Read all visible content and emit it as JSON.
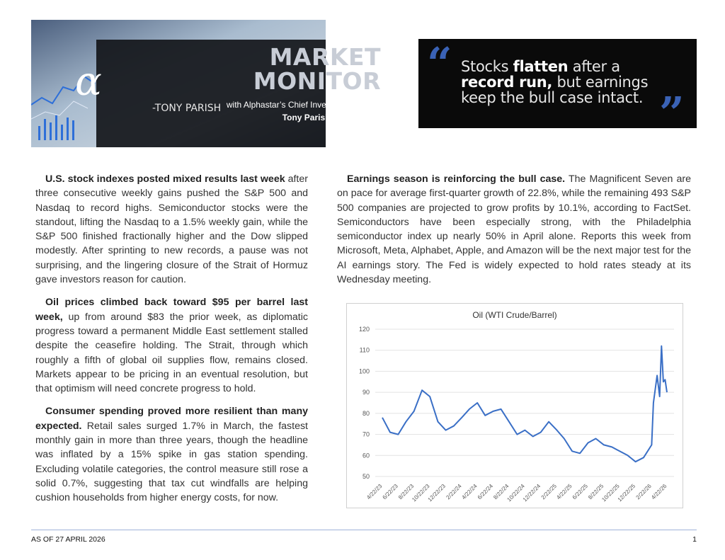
{
  "header": {
    "logo_glyph": "α",
    "title_line1": "MARKET",
    "title_line2": "MONITOR",
    "subtitle": "with Alphastar’s Chief Investment Officer,",
    "author": "Tony Parish, CFA®, CQF"
  },
  "quote": {
    "open_mark": "“",
    "close_mark": "”",
    "text_1": "Stocks ",
    "text_bold_1": "flatten",
    "text_2": " after a ",
    "text_bold_2": "record run,",
    "text_3": " but earnings keep the bull case intact.",
    "author": "-TONY PARISH"
  },
  "left_column": [
    {
      "lead": "U.S. stock indexes posted mixed results last week",
      "body": " after three consecutive weekly gains pushed the S&P 500 and Nasdaq to record highs. Semiconductor stocks were the standout, lifting the Nasdaq to a 1.5% weekly gain, while the S&P 500 finished fractionally higher and the Dow slipped modestly. After sprinting to new records, a pause was not surprising, and the lingering closure of the Strait of Hormuz gave investors reason for caution."
    },
    {
      "lead": "Oil prices climbed back toward $95 per barrel last week,",
      "body": " up from around $83 the prior week, as diplomatic progress toward a permanent Middle East settlement stalled despite the ceasefire holding. The Strait, through which roughly a fifth of global oil supplies flow, remains closed. Markets appear to be pricing in an eventual resolution, but that optimism will need concrete progress to hold."
    },
    {
      "lead": "Consumer spending proved more resilient than many expected.",
      "body": " Retail sales surged 1.7% in March, the fastest monthly gain in more than three years, though the headline was inflated by a 15% spike in gas station spending. Excluding volatile categories, the control measure still rose a solid 0.7%, suggesting that tax cut windfalls are helping cushion households from higher energy costs, for now."
    }
  ],
  "right_column": [
    {
      "lead": "Earnings season is reinforcing the bull case.",
      "body": " The Magnificent Seven are on pace for average first-quarter growth of 22.8%, while the remaining 493 S&P 500 companies are projected to grow profits by 10.1%, according to FactSet. Semiconductors have been especially strong, with the Philadelphia semiconductor index up nearly 50% in April alone. Reports this week from Microsoft, Meta, Alphabet, Apple, and Amazon will be the next major test for the AI earnings story. The Fed is widely expected to hold rates steady at its Wednesday meeting."
    }
  ],
  "chart_data": {
    "type": "line",
    "title": "Oil (WTI Crude/Barrel)",
    "xlabel": "",
    "ylabel": "",
    "ylim": [
      50,
      120
    ],
    "yticks": [
      50,
      60,
      70,
      80,
      90,
      100,
      110,
      120
    ],
    "xticks": [
      "4/22/23",
      "6/22/23",
      "8/22/23",
      "10/22/23",
      "12/22/23",
      "2/22/24",
      "4/22/24",
      "6/22/24",
      "8/22/24",
      "10/22/24",
      "12/22/24",
      "2/22/25",
      "4/22/25",
      "6/22/25",
      "8/22/25",
      "10/22/25",
      "12/22/25",
      "2/22/26",
      "4/22/26"
    ],
    "grid": true,
    "legend": "none",
    "color": "#3a6fc6",
    "series": [
      {
        "x": [
          "4/22/23",
          "5/22/23",
          "6/22/23",
          "7/22/23",
          "8/22/23",
          "9/22/23",
          "10/22/23",
          "11/22/23",
          "12/22/23",
          "1/22/24",
          "2/22/24",
          "3/22/24",
          "4/22/24",
          "5/22/24",
          "6/22/24",
          "7/22/24",
          "8/22/24",
          "9/22/24",
          "10/22/24",
          "11/22/24",
          "12/22/24",
          "1/22/25",
          "2/22/25",
          "3/22/25",
          "4/22/25",
          "5/22/25",
          "6/22/25",
          "7/22/25",
          "8/22/25",
          "9/22/25",
          "10/22/25",
          "11/22/25",
          "12/22/25",
          "1/22/26",
          "2/22/26",
          "3/1/26",
          "3/15/26",
          "3/25/26",
          "4/1/26",
          "4/8/26",
          "4/15/26",
          "4/22/26"
        ],
        "values": [
          78,
          71,
          70,
          76,
          81,
          91,
          88,
          76,
          72,
          74,
          78,
          82,
          85,
          79,
          81,
          82,
          76,
          70,
          72,
          69,
          71,
          76,
          72,
          68,
          62,
          61,
          66,
          68,
          65,
          64,
          62,
          60,
          57,
          59,
          65,
          85,
          98,
          88,
          112,
          95,
          96,
          90
        ]
      }
    ]
  },
  "footer": {
    "date": "AS OF 27 APRIL 2026",
    "page": "1"
  }
}
